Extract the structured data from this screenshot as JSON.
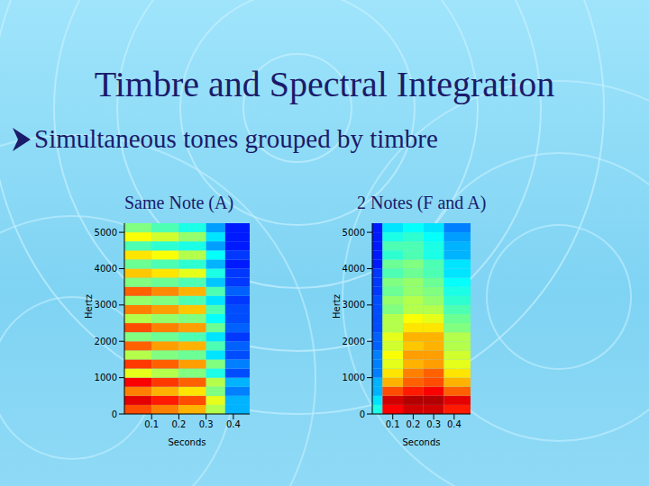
{
  "title": "Timbre and Spectral Integration",
  "bullet": "Simultaneous tones grouped by timbre",
  "chart_data": [
    {
      "type": "heatmap",
      "title": "Same Note (A)",
      "x_label": "Seconds",
      "y_label": "Hertz",
      "xlim": [
        0,
        0.46
      ],
      "xticks": [
        0.1,
        0.2,
        0.3,
        0.4
      ],
      "ylim": [
        0,
        5250
      ],
      "yticks": [
        0,
        1000,
        2000,
        3000,
        4000,
        5000
      ],
      "color_range": [
        0,
        100
      ],
      "x_edges": [
        0,
        0.1,
        0.2,
        0.3,
        0.37,
        0.46
      ],
      "y_edges": [
        0,
        250,
        500,
        750,
        1000,
        1250,
        1500,
        1750,
        2000,
        2250,
        2500,
        2750,
        3000,
        3250,
        3500,
        3750,
        4000,
        4250,
        4500,
        4750,
        5000,
        5250
      ],
      "cells": [
        [
          80,
          75,
          70,
          55,
          30
        ],
        [
          90,
          85,
          80,
          60,
          30
        ],
        [
          75,
          70,
          65,
          50,
          25
        ],
        [
          88,
          82,
          78,
          55,
          30
        ],
        [
          60,
          55,
          50,
          40,
          20
        ],
        [
          82,
          78,
          72,
          50,
          25
        ],
        [
          55,
          50,
          48,
          35,
          20
        ],
        [
          78,
          72,
          70,
          45,
          22
        ],
        [
          50,
          48,
          45,
          35,
          18
        ],
        [
          80,
          75,
          72,
          48,
          22
        ],
        [
          55,
          52,
          50,
          38,
          20
        ],
        [
          75,
          72,
          68,
          45,
          20
        ],
        [
          52,
          50,
          45,
          35,
          18
        ],
        [
          78,
          74,
          70,
          45,
          22
        ],
        [
          50,
          48,
          45,
          32,
          18
        ],
        [
          68,
          65,
          60,
          40,
          18
        ],
        [
          48,
          45,
          42,
          30,
          15
        ],
        [
          65,
          62,
          55,
          38,
          18
        ],
        [
          45,
          42,
          40,
          28,
          15
        ],
        [
          62,
          58,
          52,
          35,
          15
        ],
        [
          50,
          45,
          40,
          28,
          15
        ]
      ]
    },
    {
      "type": "heatmap",
      "title": "2 Notes (F and A)",
      "x_label": "Seconds",
      "y_label": "Hertz",
      "xlim": [
        0,
        0.48
      ],
      "xticks": [
        0.1,
        0.2,
        0.3,
        0.4
      ],
      "ylim": [
        0,
        5250
      ],
      "yticks": [
        0,
        1000,
        2000,
        3000,
        4000,
        5000
      ],
      "color_range": [
        0,
        100
      ],
      "x_edges": [
        0,
        0.05,
        0.15,
        0.25,
        0.35,
        0.48
      ],
      "y_edges": [
        0,
        250,
        500,
        750,
        1000,
        1250,
        1500,
        1750,
        2000,
        2250,
        2500,
        2750,
        3000,
        3250,
        3500,
        3750,
        4000,
        4250,
        4500,
        4750,
        5000,
        5250
      ],
      "cells": [
        [
          40,
          88,
          92,
          92,
          85
        ],
        [
          35,
          92,
          95,
          95,
          90
        ],
        [
          30,
          80,
          85,
          88,
          78
        ],
        [
          30,
          70,
          78,
          80,
          70
        ],
        [
          25,
          65,
          75,
          78,
          65
        ],
        [
          25,
          60,
          70,
          72,
          60
        ],
        [
          25,
          62,
          72,
          72,
          58
        ],
        [
          22,
          58,
          68,
          70,
          55
        ],
        [
          22,
          60,
          70,
          70,
          55
        ],
        [
          20,
          55,
          65,
          65,
          50
        ],
        [
          20,
          55,
          62,
          60,
          48
        ],
        [
          20,
          50,
          55,
          55,
          45
        ],
        [
          20,
          52,
          55,
          52,
          42
        ],
        [
          18,
          48,
          52,
          50,
          40
        ],
        [
          18,
          50,
          52,
          48,
          38
        ],
        [
          18,
          45,
          48,
          45,
          35
        ],
        [
          15,
          48,
          50,
          45,
          35
        ],
        [
          15,
          42,
          45,
          40,
          30
        ],
        [
          15,
          45,
          45,
          40,
          30
        ],
        [
          15,
          40,
          42,
          38,
          28
        ],
        [
          15,
          35,
          38,
          35,
          25
        ]
      ]
    }
  ]
}
